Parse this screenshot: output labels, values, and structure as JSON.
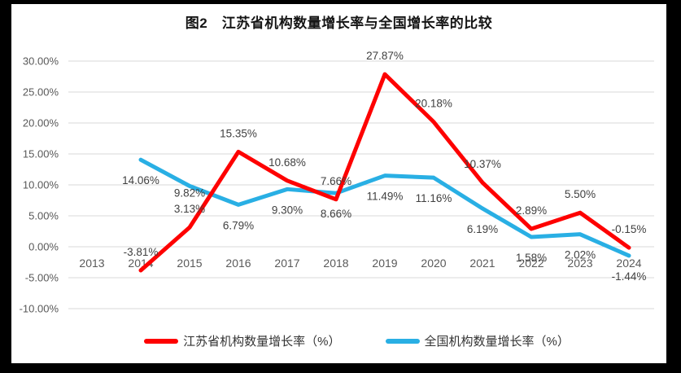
{
  "page": {
    "background_color": "#000000",
    "chart_background_color": "#ffffff"
  },
  "chart_data": {
    "type": "line",
    "title": "图2　江苏省机构数量增长率与全国增长率的比较",
    "categories": [
      "2013",
      "2014",
      "2015",
      "2016",
      "2017",
      "2018",
      "2019",
      "2020",
      "2021",
      "2022",
      "2023",
      "2024"
    ],
    "series": [
      {
        "name": "江苏省机构数量增长率（%）",
        "color": "#FE0000",
        "values": [
          null,
          -3.81,
          3.13,
          15.35,
          10.68,
          7.66,
          27.87,
          20.18,
          10.37,
          2.89,
          5.5,
          -0.15
        ],
        "data_labels": [
          "",
          "-3.81%",
          "3.13%",
          "15.35%",
          "10.68%",
          "7.66%",
          "27.87%",
          "20.18%",
          "10.37%",
          "2.89%",
          "5.50%",
          "-0.15%"
        ]
      },
      {
        "name": "全国机构数量增长率（%）",
        "color": "#29AFE4",
        "values": [
          null,
          14.06,
          9.82,
          6.79,
          9.3,
          8.66,
          11.49,
          11.16,
          6.19,
          1.58,
          2.02,
          -1.44
        ],
        "data_labels": [
          "",
          "14.06%",
          "9.82%",
          "6.79%",
          "9.30%",
          "8.66%",
          "11.49%",
          "11.16%",
          "6.19%",
          "1.58%",
          "2.02%",
          "-1.44%"
        ]
      }
    ],
    "ylim": [
      -10,
      30
    ],
    "y_step": 5,
    "y_tick_labels": [
      "30.00%",
      "25.00%",
      "20.00%",
      "15.00%",
      "10.00%",
      "5.00%",
      "0.00%",
      "-5.00%",
      "-10.00%"
    ],
    "grid": true,
    "gridline_color": "#D9D9D9",
    "axis_text_color": "#595959",
    "data_label_color": "#404040",
    "legend_position": "bottom"
  }
}
